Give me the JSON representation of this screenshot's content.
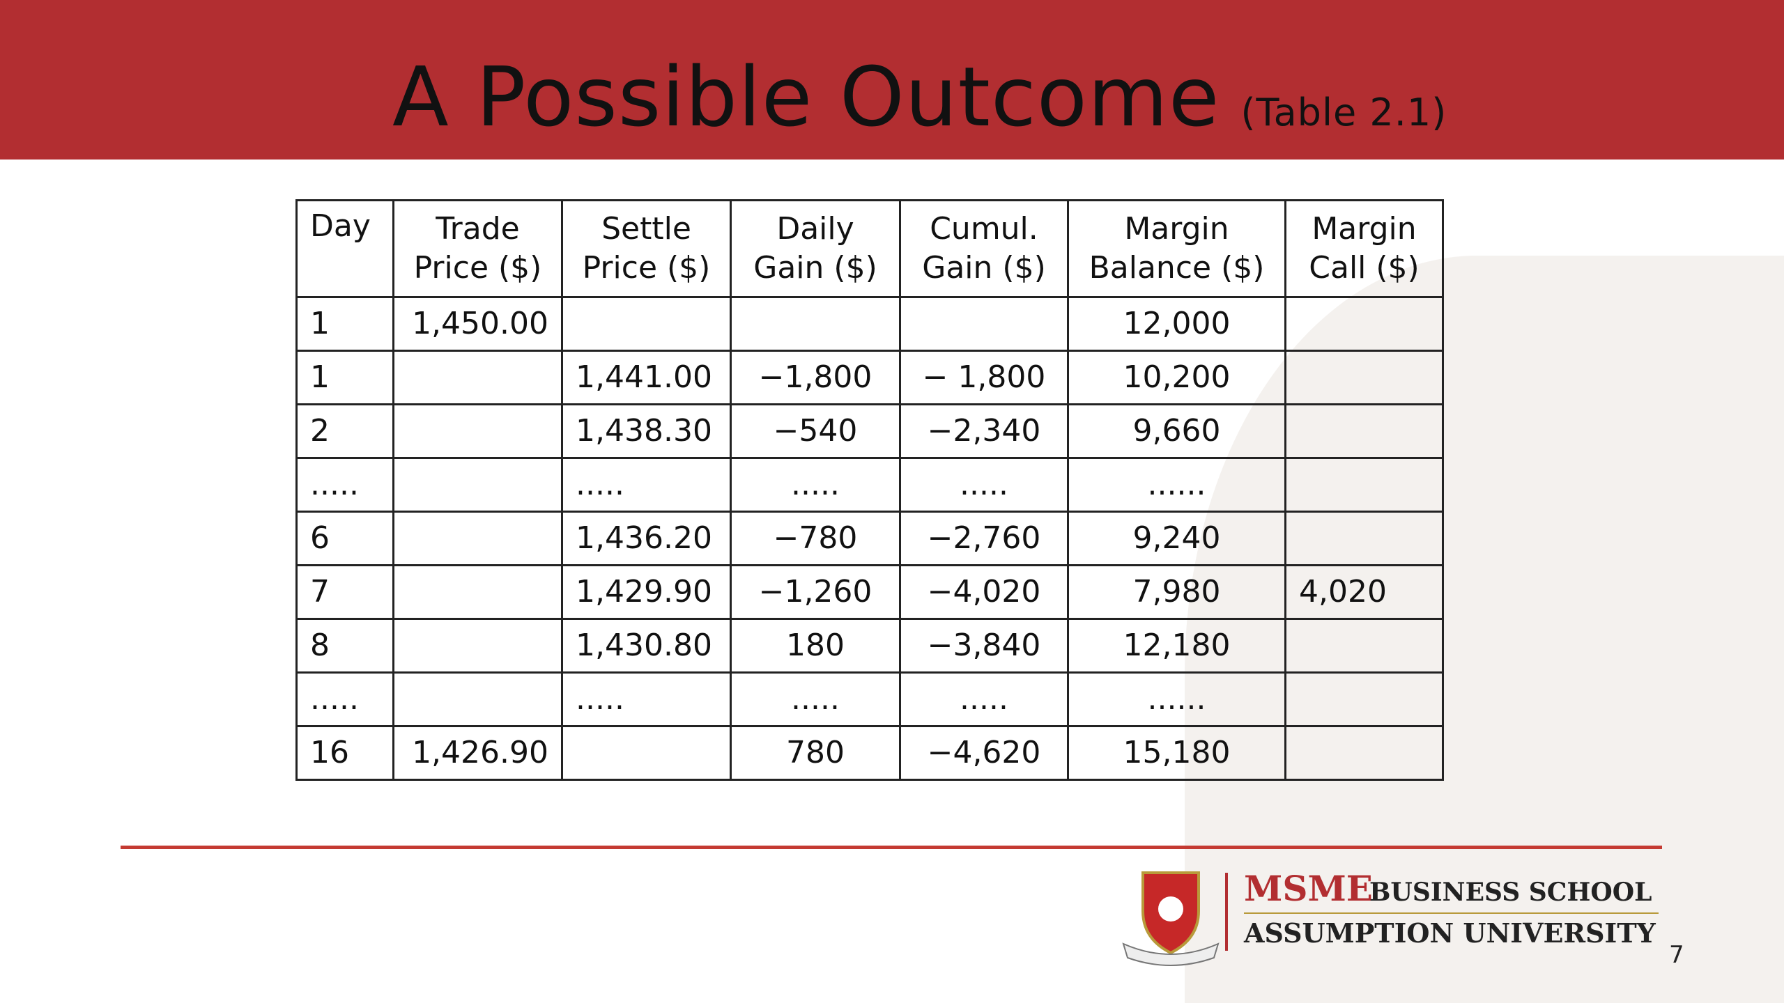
{
  "header": {
    "title": "A Possible Outcome",
    "subtitle": "(Table 2.1)"
  },
  "table": {
    "columns": [
      [
        "Day"
      ],
      [
        "Trade",
        "Price ($)"
      ],
      [
        "Settle",
        "Price ($)"
      ],
      [
        "Daily",
        "Gain ($)"
      ],
      [
        "Cumul.",
        "Gain ($)"
      ],
      [
        "Margin",
        "Balance ($)"
      ],
      [
        "Margin",
        "Call ($)"
      ]
    ],
    "rows": [
      [
        "1",
        "1,450.00",
        null,
        null,
        null,
        "12,000",
        null
      ],
      [
        "1",
        null,
        "1,441.00",
        "−1,800",
        "− 1,800",
        "10,200",
        null
      ],
      [
        "2",
        null,
        "1,438.30",
        "−540",
        "−2,340",
        "9,660",
        null
      ],
      [
        ".....",
        null,
        ".....",
        ".....",
        ".....",
        "......",
        null
      ],
      [
        "6",
        null,
        "1,436.20",
        "−780",
        "−2,760",
        "9,240",
        null
      ],
      [
        "7",
        null,
        "1,429.90",
        "−1,260",
        "−4,020",
        "7,980",
        "4,020"
      ],
      [
        "8",
        null,
        "1,430.80",
        "180",
        "−3,840",
        "12,180",
        null
      ],
      [
        ".....",
        null,
        ".....",
        ".....",
        ".....",
        "......",
        null
      ],
      [
        "16",
        "1,426.90",
        null,
        "780",
        "−4,620",
        "15,180",
        null
      ]
    ]
  },
  "footer": {
    "school": "MSME",
    "school_suffix": "BUSINESS SCHOOL",
    "university": "ASSUMPTION UNIVERSITY",
    "page": "7"
  }
}
